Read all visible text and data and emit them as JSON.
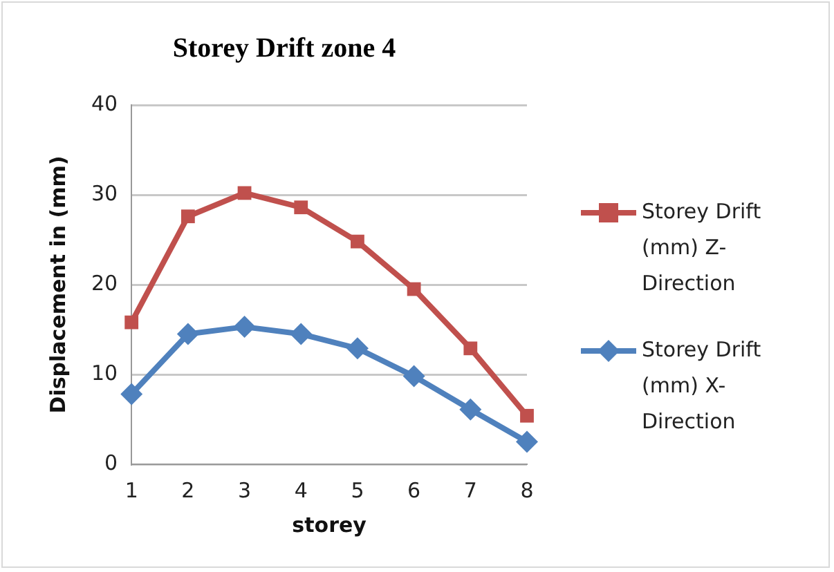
{
  "chart_data": {
    "type": "line",
    "title": "Storey Drift zone 4",
    "xlabel": "storey",
    "ylabel": "Displacement in (mm)",
    "categories": [
      "1",
      "2",
      "3",
      "4",
      "5",
      "6",
      "7",
      "8"
    ],
    "series": [
      {
        "name": "Storey Drift (mm) Z-Direction",
        "color": "#c0504d",
        "marker": "square",
        "values": [
          15.8,
          27.6,
          30.2,
          28.6,
          24.8,
          19.5,
          12.9,
          5.4
        ]
      },
      {
        "name": "Storey Drift (mm) X-Direction",
        "color": "#4f81bd",
        "marker": "diamond",
        "values": [
          7.8,
          14.5,
          15.3,
          14.5,
          12.9,
          9.8,
          6.1,
          2.5
        ]
      }
    ],
    "ylim": [
      0,
      40
    ],
    "yticks": [
      0,
      10,
      20,
      30,
      40
    ],
    "grid": "y",
    "legend": "right"
  }
}
